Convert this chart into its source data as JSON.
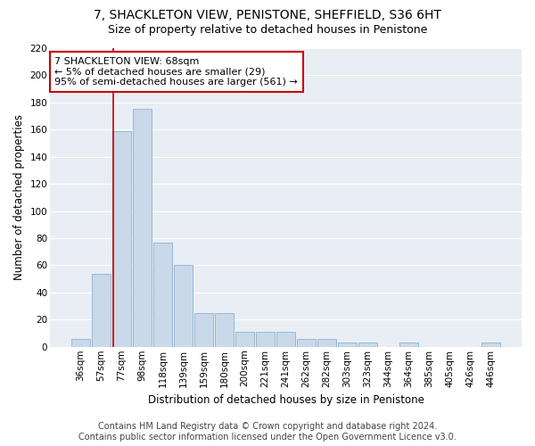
{
  "title1": "7, SHACKLETON VIEW, PENISTONE, SHEFFIELD, S36 6HT",
  "title2": "Size of property relative to detached houses in Penistone",
  "xlabel": "Distribution of detached houses by size in Penistone",
  "ylabel": "Number of detached properties",
  "footer1": "Contains HM Land Registry data © Crown copyright and database right 2024.",
  "footer2": "Contains public sector information licensed under the Open Government Licence v3.0.",
  "categories": [
    "36sqm",
    "57sqm",
    "77sqm",
    "98sqm",
    "118sqm",
    "139sqm",
    "159sqm",
    "180sqm",
    "200sqm",
    "221sqm",
    "241sqm",
    "262sqm",
    "282sqm",
    "303sqm",
    "323sqm",
    "344sqm",
    "364sqm",
    "385sqm",
    "405sqm",
    "426sqm",
    "446sqm"
  ],
  "values": [
    6,
    54,
    159,
    175,
    77,
    60,
    25,
    25,
    11,
    11,
    11,
    6,
    6,
    3,
    3,
    0,
    3,
    0,
    0,
    0,
    3
  ],
  "bar_color": "#c9d9ea",
  "bar_edge_color": "#9ab8d0",
  "vline_color": "#cc0000",
  "vline_pos": 1.57,
  "annotation_text": "7 SHACKLETON VIEW: 68sqm\n← 5% of detached houses are smaller (29)\n95% of semi-detached houses are larger (561) →",
  "annotation_box_facecolor": "#ffffff",
  "annotation_box_edgecolor": "#cc0000",
  "ylim": [
    0,
    220
  ],
  "yticks": [
    0,
    20,
    40,
    60,
    80,
    100,
    120,
    140,
    160,
    180,
    200,
    220
  ],
  "bg_color": "#e8eef4",
  "grid_color": "#ffffff",
  "title_fontsize": 10,
  "subtitle_fontsize": 9,
  "axis_label_fontsize": 8.5,
  "tick_fontsize": 7.5,
  "annotation_fontsize": 8,
  "footer_fontsize": 7
}
